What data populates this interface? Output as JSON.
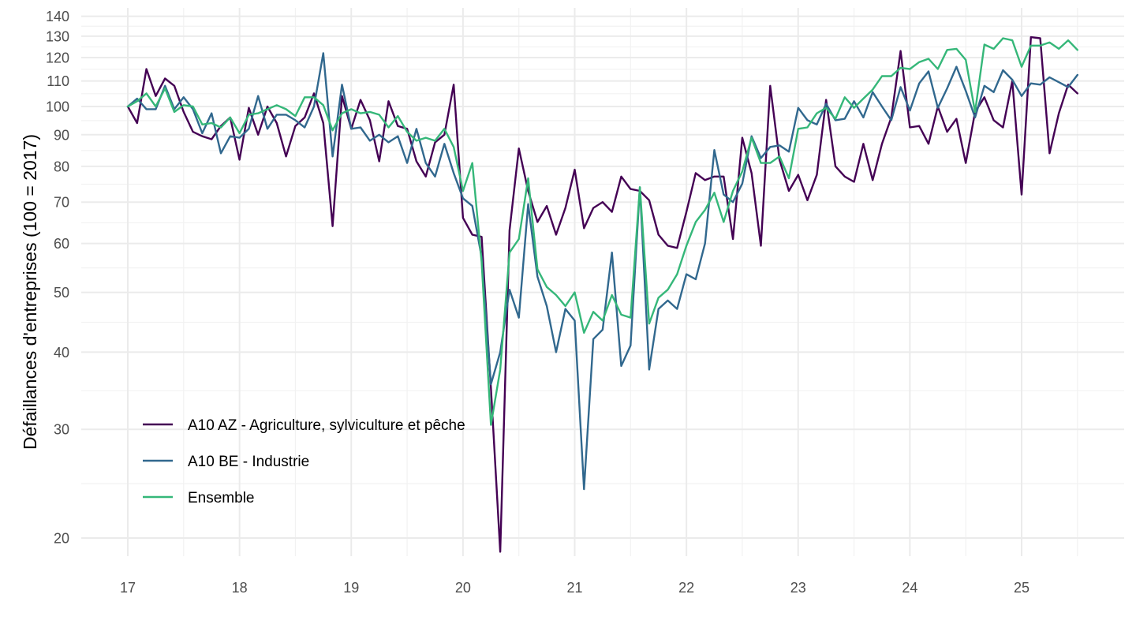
{
  "chart_data": {
    "type": "line",
    "title": "",
    "xlabel": "",
    "ylabel": "Défaillances d'entreprises (100 = 2017)",
    "y_scale": "log",
    "ylim": [
      19,
      142
    ],
    "xlim": [
      16.6,
      25.95
    ],
    "y_ticks": [
      20,
      30,
      40,
      50,
      60,
      70,
      80,
      90,
      100,
      110,
      120,
      130,
      140
    ],
    "x_ticks": [
      17,
      18,
      19,
      20,
      21,
      22,
      23,
      24,
      25
    ],
    "x_tick_labels": [
      "17",
      "18",
      "19",
      "20",
      "21",
      "22",
      "23",
      "24",
      "25"
    ],
    "grid": true,
    "legend_position": "bottom-left",
    "series": [
      {
        "name": "A10 AZ - Agriculture, sylviculture et pêche",
        "color": "#440154",
        "x": [
          17.0,
          17.0833,
          17.1667,
          17.25,
          17.3333,
          17.4167,
          17.5,
          17.5833,
          17.6667,
          17.75,
          17.8333,
          17.9167,
          18.0,
          18.0833,
          18.1667,
          18.25,
          18.3333,
          18.4167,
          18.5,
          18.5833,
          18.6667,
          18.75,
          18.8333,
          18.9167,
          19.0,
          19.0833,
          19.1667,
          19.25,
          19.3333,
          19.4167,
          19.5,
          19.5833,
          19.6667,
          19.75,
          19.8333,
          19.9167,
          20.0,
          20.0833,
          20.1667,
          20.25,
          20.3333,
          20.4167,
          20.5,
          20.5833,
          20.6667,
          20.75,
          20.8333,
          20.9167,
          21.0,
          21.0833,
          21.1667,
          21.25,
          21.3333,
          21.4167,
          21.5,
          21.5833,
          21.6667,
          21.75,
          21.8333,
          21.9167,
          22.0,
          22.0833,
          22.1667,
          22.25,
          22.3333,
          22.4167,
          22.5,
          22.5833,
          22.6667,
          22.75,
          22.8333,
          22.9167,
          23.0,
          23.0833,
          23.1667,
          23.25,
          23.3333,
          23.4167,
          23.5,
          23.5833,
          23.6667,
          23.75,
          23.8333,
          23.9167,
          24.0,
          24.0833,
          24.1667,
          24.25,
          24.3333,
          24.4167,
          24.5,
          24.5833,
          24.6667,
          24.75,
          24.8333,
          24.9167,
          25.0,
          25.0833,
          25.1667,
          25.25,
          25.3333,
          25.4167,
          25.5
        ],
        "values": [
          100,
          94,
          115,
          104,
          111,
          108,
          98,
          91,
          89.5,
          88.5,
          93,
          96,
          82,
          99.5,
          90,
          100,
          94,
          83,
          93,
          96,
          105,
          94,
          64,
          104,
          92,
          102.5,
          95,
          81.5,
          102,
          93,
          92,
          81.5,
          77,
          87.5,
          90,
          108.5,
          66,
          62,
          61.5,
          35,
          19,
          63,
          85.5,
          73,
          65,
          69,
          62,
          68.5,
          79,
          63.5,
          68.5,
          70,
          67.5,
          77,
          73.5,
          73,
          70.5,
          62,
          59.5,
          59,
          67.5,
          78,
          76,
          77,
          77,
          61,
          89,
          78,
          59.5,
          108,
          82,
          73,
          77.5,
          70.5,
          77.5,
          102.5,
          80,
          77,
          75.5,
          87,
          76,
          87,
          96,
          123,
          92.5,
          93,
          87,
          100,
          91,
          95.5,
          81,
          98,
          103.5,
          95,
          92.5,
          110,
          72,
          129.5,
          129,
          84,
          97.5,
          108.5,
          105
        ]
      },
      {
        "name": "A10 BE - Industrie",
        "color": "#31688e",
        "x": [
          17.0,
          17.0833,
          17.1667,
          17.25,
          17.3333,
          17.4167,
          17.5,
          17.5833,
          17.6667,
          17.75,
          17.8333,
          17.9167,
          18.0,
          18.0833,
          18.1667,
          18.25,
          18.3333,
          18.4167,
          18.5,
          18.5833,
          18.6667,
          18.75,
          18.8333,
          18.9167,
          19.0,
          19.0833,
          19.1667,
          19.25,
          19.3333,
          19.4167,
          19.5,
          19.5833,
          19.6667,
          19.75,
          19.8333,
          19.9167,
          20.0,
          20.0833,
          20.1667,
          20.25,
          20.3333,
          20.4167,
          20.5,
          20.5833,
          20.6667,
          20.75,
          20.8333,
          20.9167,
          21.0,
          21.0833,
          21.1667,
          21.25,
          21.3333,
          21.4167,
          21.5,
          21.5833,
          21.6667,
          21.75,
          21.8333,
          21.9167,
          22.0,
          22.0833,
          22.1667,
          22.25,
          22.3333,
          22.4167,
          22.5,
          22.5833,
          22.6667,
          22.75,
          22.8333,
          22.9167,
          23.0,
          23.0833,
          23.1667,
          23.25,
          23.3333,
          23.4167,
          23.5,
          23.5833,
          23.6667,
          23.75,
          23.8333,
          23.9167,
          24.0,
          24.0833,
          24.1667,
          24.25,
          24.3333,
          24.4167,
          24.5,
          24.5833,
          24.6667,
          24.75,
          24.8333,
          24.9167,
          25.0,
          25.0833,
          25.1667,
          25.25,
          25.3333,
          25.4167,
          25.5
        ],
        "values": [
          100,
          103,
          99,
          99,
          108,
          99,
          103.5,
          99,
          90.5,
          97.5,
          84,
          89.5,
          89,
          92,
          104,
          92,
          97,
          97,
          95,
          92.5,
          100,
          122,
          83,
          108.5,
          92,
          92.5,
          88,
          90,
          87.5,
          89.5,
          81,
          92,
          81,
          77,
          87,
          78,
          71,
          69,
          57,
          35.5,
          40,
          50.5,
          45.5,
          69.5,
          53,
          47.5,
          40,
          47,
          45,
          24,
          42,
          43.5,
          58,
          38,
          41,
          74,
          37.5,
          47,
          48.5,
          47,
          53.5,
          52.5,
          60,
          85,
          72,
          70,
          75,
          89.5,
          82.5,
          86,
          86.5,
          84.5,
          99.5,
          95,
          93.5,
          101,
          95,
          95.5,
          102,
          96,
          105.5,
          100,
          95,
          107.5,
          98.5,
          109,
          114,
          99.5,
          107,
          116,
          106,
          96,
          108,
          105.5,
          114.5,
          110.5,
          104,
          109,
          108.5,
          111.5,
          109.5,
          107.5,
          112.5
        ]
      },
      {
        "name": "Ensemble",
        "color": "#35b779",
        "x": [
          17.0,
          17.0833,
          17.1667,
          17.25,
          17.3333,
          17.4167,
          17.5,
          17.5833,
          17.6667,
          17.75,
          17.8333,
          17.9167,
          18.0,
          18.0833,
          18.1667,
          18.25,
          18.3333,
          18.4167,
          18.5,
          18.5833,
          18.6667,
          18.75,
          18.8333,
          18.9167,
          19.0,
          19.0833,
          19.1667,
          19.25,
          19.3333,
          19.4167,
          19.5,
          19.5833,
          19.6667,
          19.75,
          19.8333,
          19.9167,
          20.0,
          20.0833,
          20.1667,
          20.25,
          20.3333,
          20.4167,
          20.5,
          20.5833,
          20.6667,
          20.75,
          20.8333,
          20.9167,
          21.0,
          21.0833,
          21.1667,
          21.25,
          21.3333,
          21.4167,
          21.5,
          21.5833,
          21.6667,
          21.75,
          21.8333,
          21.9167,
          22.0,
          22.0833,
          22.1667,
          22.25,
          22.3333,
          22.4167,
          22.5,
          22.5833,
          22.6667,
          22.75,
          22.8333,
          22.9167,
          23.0,
          23.0833,
          23.1667,
          23.25,
          23.3333,
          23.4167,
          23.5,
          23.5833,
          23.6667,
          23.75,
          23.8333,
          23.9167,
          24.0,
          24.0833,
          24.1667,
          24.25,
          24.3333,
          24.4167,
          24.5,
          24.5833,
          24.6667,
          24.75,
          24.8333,
          24.9167,
          25.0,
          25.0833,
          25.1667,
          25.25,
          25.3333,
          25.4167,
          25.5
        ],
        "values": [
          100,
          102,
          105,
          100,
          107,
          98,
          100.5,
          100,
          93.5,
          94,
          92.5,
          96,
          90.5,
          97,
          97.5,
          99,
          100.5,
          99,
          96.5,
          103.5,
          103.5,
          100.5,
          91.5,
          97.5,
          99,
          97.5,
          98,
          97,
          92.5,
          96.5,
          91,
          88,
          89,
          88,
          92,
          86,
          73,
          81,
          56,
          30.5,
          37.5,
          58,
          61,
          76.5,
          54.5,
          51,
          49.5,
          47.5,
          50,
          43,
          46.5,
          45,
          49.5,
          46,
          45.5,
          74,
          44.5,
          49,
          50.5,
          53.5,
          59.5,
          65,
          68,
          72.5,
          65,
          73,
          78.5,
          89,
          81,
          81,
          83,
          76.5,
          92,
          92.5,
          97.5,
          99.5,
          95.5,
          103.5,
          99.5,
          103,
          106.5,
          112,
          112,
          115.5,
          115,
          118,
          119.5,
          115,
          123.5,
          124,
          119,
          98,
          126,
          124,
          129,
          128,
          116,
          125.5,
          125.5,
          127,
          124,
          128,
          123.5
        ]
      }
    ]
  }
}
